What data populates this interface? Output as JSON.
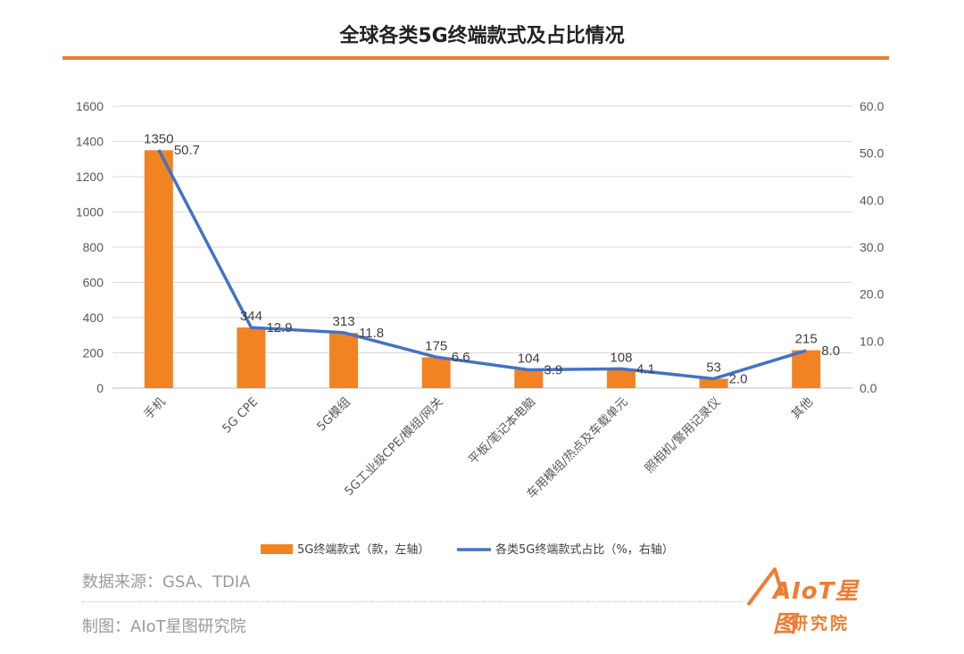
{
  "header": {
    "title": "全球各类5G终端款式及占比情况",
    "accent_color": "#ED7D31"
  },
  "chart_data": {
    "type": "bar",
    "categories": [
      "手机",
      "5G CPE",
      "5G模组",
      "5G工业级CPE/模组/网关",
      "平板/笔记本电脑",
      "车用模组/热点及车载单元",
      "照相机/警用记录仪",
      "其他"
    ],
    "series": [
      {
        "name": "5G终端款式（款，左轴）",
        "type": "bar",
        "axis": "left",
        "color": "#F28322",
        "values": [
          1350,
          344,
          313,
          175,
          104,
          108,
          53,
          215
        ],
        "labels": [
          "1350",
          "344",
          "313",
          "175",
          "104",
          "108",
          "53",
          "215"
        ]
      },
      {
        "name": "各类5G终端款式占比（%，右轴）",
        "type": "line",
        "axis": "right",
        "color": "#4472C4",
        "values": [
          50.7,
          12.9,
          11.8,
          6.6,
          3.9,
          4.1,
          2.0,
          8.0
        ],
        "labels": [
          "50.7",
          "12.9",
          "11.8",
          "6.6",
          "3.9",
          "4.1",
          "2.0",
          "8.0"
        ]
      }
    ],
    "y_left": {
      "min": 0,
      "max": 1600,
      "ticks": [
        "0",
        "200",
        "400",
        "600",
        "800",
        "1000",
        "1200",
        "1400",
        "1600"
      ]
    },
    "y_right": {
      "min": 0,
      "max": 60,
      "ticks": [
        "0.0",
        "10.0",
        "20.0",
        "30.0",
        "40.0",
        "50.0",
        "60.0"
      ]
    },
    "grid": true,
    "legend_position": "bottom"
  },
  "footer": {
    "source": "数据来源：GSA、TDIA",
    "credit": "制图：AIoT星图研究院",
    "logo_top": "AIoT星图",
    "logo_bottom": "研究院"
  }
}
